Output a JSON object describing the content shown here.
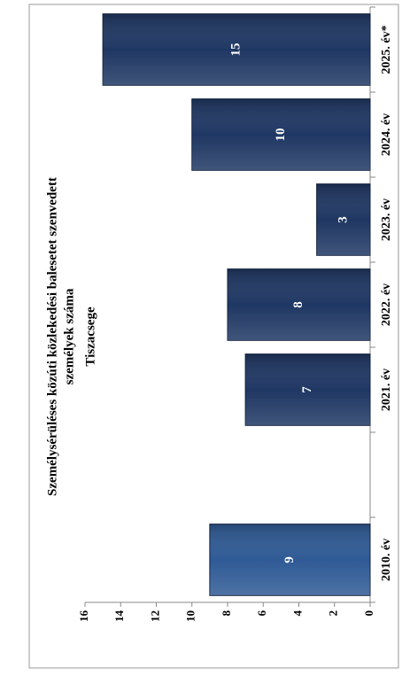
{
  "chart_data": {
    "type": "bar",
    "title": "Tiszacsege",
    "subtitle": [
      "Személysérüléses közúti közlekedési balesetet szenvedett",
      "személyek száma"
    ],
    "categories": [
      "2010. év",
      null,
      "2021. év",
      "2022. év",
      "2023. év",
      "2024. év",
      "2025. év*"
    ],
    "values": [
      9,
      null,
      7,
      8,
      3,
      10,
      15
    ],
    "colors": [
      "#2f5a95",
      null,
      "#1f3763",
      "#1f3763",
      "#1f3763",
      "#1f3763",
      "#1f3763"
    ],
    "ylim": [
      0,
      16
    ],
    "yticks": [
      0,
      2,
      4,
      6,
      8,
      10,
      12,
      14,
      16
    ],
    "grid": false
  }
}
